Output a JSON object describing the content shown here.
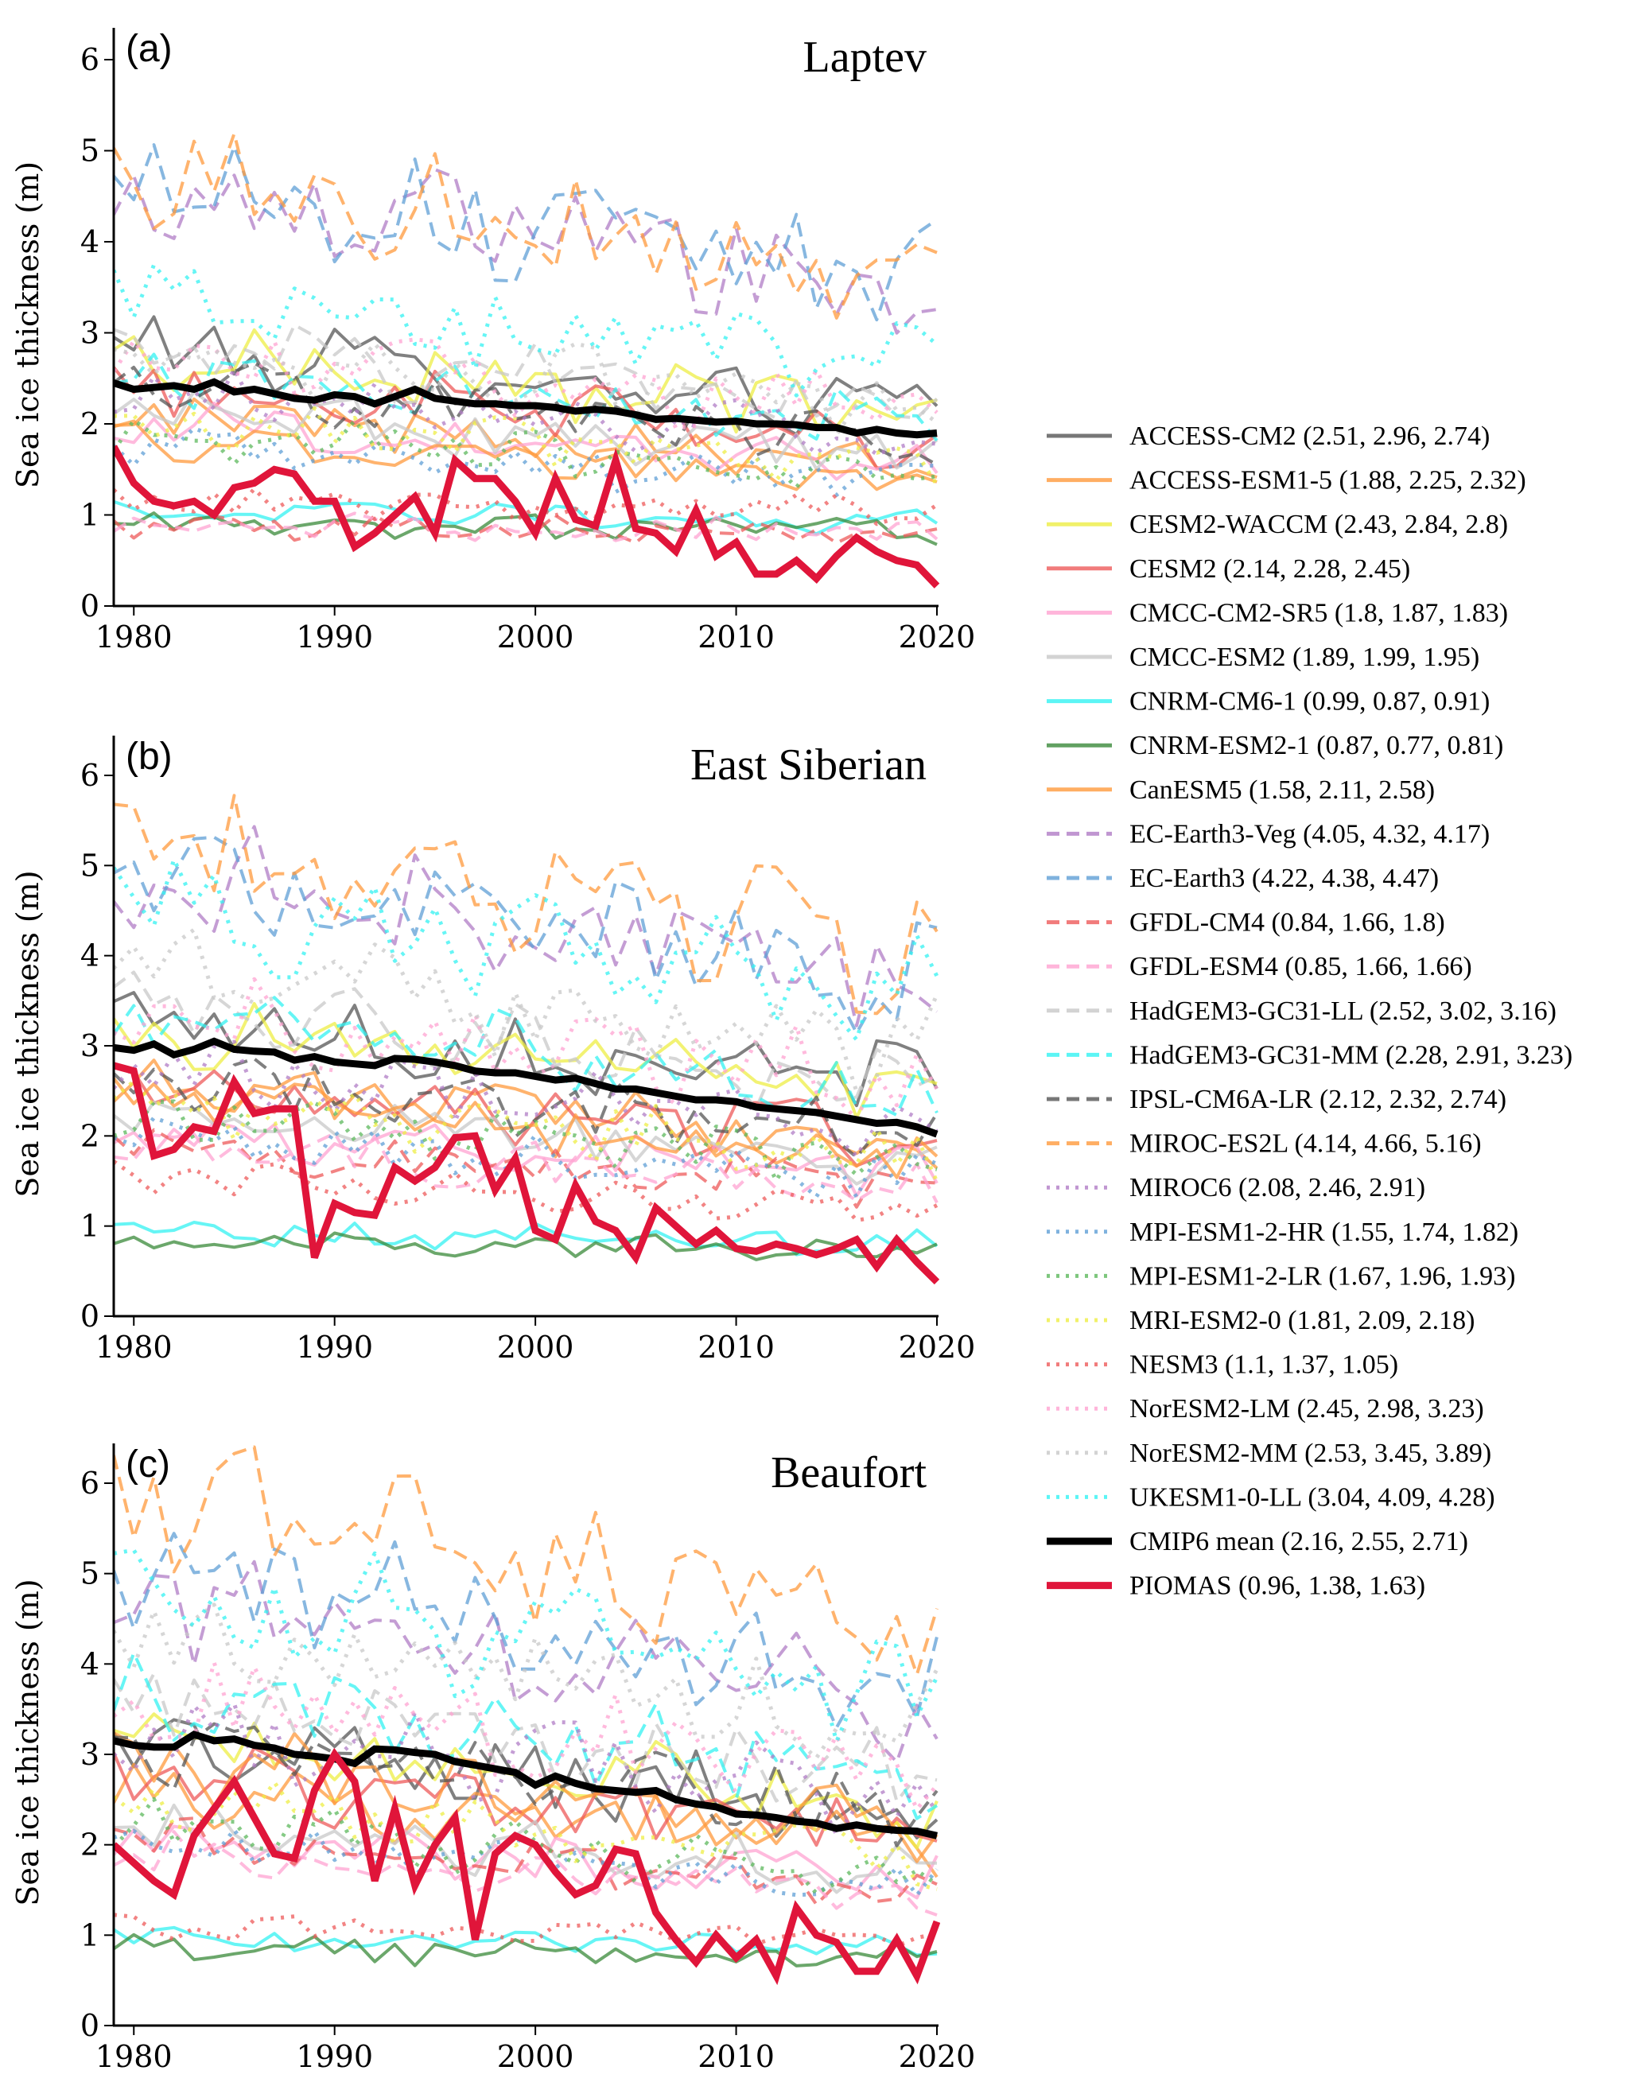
{
  "chart_data": {
    "type": "line",
    "figure_ylabel": "Sea ice thickness (m)",
    "x_ticks": [
      1980,
      1990,
      2000,
      2010,
      2020
    ],
    "y_ticks": [
      0,
      1,
      2,
      3,
      4,
      5,
      6
    ],
    "xlim": [
      1979,
      2020
    ],
    "ylim": [
      0,
      6.5
    ],
    "grid": false,
    "legend_placement": "right",
    "panels": [
      {
        "letter": "(a)",
        "title": "Laptev",
        "ylabel": "Sea ice thickness (m)",
        "cmip6_mean": [
          2.45,
          2.38,
          2.4,
          2.42,
          2.38,
          2.46,
          2.35,
          2.38,
          2.33,
          2.28,
          2.26,
          2.32,
          2.3,
          2.22,
          2.3,
          2.38,
          2.28,
          2.25,
          2.22,
          2.22,
          2.2,
          2.2,
          2.18,
          2.14,
          2.16,
          2.14,
          2.1,
          2.05,
          2.06,
          2.04,
          2.02,
          2.03,
          2.0,
          2.0,
          1.99,
          1.96,
          1.96,
          1.9,
          1.94,
          1.9,
          1.88,
          1.9
        ],
        "piomas": [
          1.75,
          1.35,
          1.15,
          1.1,
          1.15,
          1.0,
          1.3,
          1.35,
          1.5,
          1.45,
          1.15,
          1.15,
          0.65,
          0.8,
          1.0,
          1.2,
          0.8,
          1.6,
          1.4,
          1.4,
          1.15,
          0.8,
          1.4,
          0.95,
          0.88,
          1.6,
          0.85,
          0.8,
          0.6,
          1.05,
          0.55,
          0.7,
          0.35,
          0.35,
          0.5,
          0.3,
          0.55,
          0.75,
          0.6,
          0.5,
          0.45,
          0.22
        ]
      },
      {
        "letter": "(b)",
        "title": "East Siberian",
        "ylabel": "Sea ice thickness (m)",
        "cmip6_mean": [
          2.98,
          2.95,
          3.02,
          2.9,
          2.96,
          3.05,
          2.96,
          2.94,
          2.93,
          2.84,
          2.88,
          2.82,
          2.8,
          2.78,
          2.86,
          2.85,
          2.82,
          2.78,
          2.72,
          2.7,
          2.7,
          2.66,
          2.62,
          2.64,
          2.58,
          2.52,
          2.52,
          2.48,
          2.44,
          2.4,
          2.4,
          2.38,
          2.32,
          2.3,
          2.28,
          2.26,
          2.22,
          2.18,
          2.14,
          2.15,
          2.1,
          2.02
        ],
        "piomas": [
          2.78,
          2.72,
          1.78,
          1.85,
          2.1,
          2.05,
          2.6,
          2.25,
          2.3,
          2.3,
          0.65,
          1.25,
          1.15,
          1.12,
          1.65,
          1.5,
          1.65,
          1.98,
          2.0,
          1.4,
          1.75,
          0.95,
          0.85,
          1.45,
          1.05,
          0.95,
          0.65,
          1.2,
          1.0,
          0.8,
          0.95,
          0.75,
          0.72,
          0.8,
          0.75,
          0.68,
          0.75,
          0.85,
          0.55,
          0.85,
          0.6,
          0.38
        ]
      },
      {
        "letter": "(c)",
        "title": "Beaufort",
        "ylabel": "Sea ice thickness (m)",
        "cmip6_mean": [
          3.15,
          3.1,
          3.08,
          3.08,
          3.22,
          3.15,
          3.17,
          3.1,
          3.07,
          3.0,
          2.98,
          2.95,
          2.9,
          3.06,
          3.05,
          3.02,
          3.0,
          2.92,
          2.88,
          2.84,
          2.8,
          2.66,
          2.76,
          2.68,
          2.62,
          2.6,
          2.58,
          2.6,
          2.5,
          2.45,
          2.42,
          2.34,
          2.33,
          2.3,
          2.26,
          2.24,
          2.18,
          2.22,
          2.18,
          2.16,
          2.15,
          2.1
        ],
        "piomas": [
          2.0,
          1.8,
          1.6,
          1.45,
          2.1,
          2.4,
          2.7,
          2.3,
          1.9,
          1.85,
          2.6,
          3.0,
          2.7,
          1.6,
          2.4,
          1.55,
          2.0,
          2.3,
          0.95,
          1.9,
          2.1,
          2.0,
          1.7,
          1.45,
          1.55,
          1.95,
          1.9,
          1.25,
          0.95,
          0.7,
          1.0,
          0.75,
          0.95,
          0.55,
          1.3,
          1.0,
          0.92,
          0.6,
          0.6,
          0.95,
          0.55,
          1.15
        ]
      }
    ],
    "series": [
      {
        "name": "ACCESS-CM2",
        "label": "ACCESS-CM2 (2.51, 2.96, 2.74)",
        "color": "#555555",
        "style": "solid",
        "means": [
          2.51,
          2.96,
          2.74
        ]
      },
      {
        "name": "ACCESS-ESM1-5",
        "label": "ACCESS-ESM1-5 (1.88, 2.25, 2.32)",
        "color": "#ff9a3c",
        "style": "solid",
        "means": [
          1.88,
          2.25,
          2.32
        ]
      },
      {
        "name": "CESM2-WACCM",
        "label": "CESM2-WACCM (2.43, 2.84, 2.8)",
        "color": "#eeee44",
        "style": "solid",
        "means": [
          2.43,
          2.84,
          2.8
        ]
      },
      {
        "name": "CESM2",
        "label": "CESM2 (2.14, 2.28, 2.45)",
        "color": "#ee5a5a",
        "style": "solid",
        "means": [
          2.14,
          2.28,
          2.45
        ]
      },
      {
        "name": "CMCC-CM2-SR5",
        "label": "CMCC-CM2-SR5 (1.8, 1.87, 1.83)",
        "color": "#ffa3d1",
        "style": "solid",
        "means": [
          1.8,
          1.87,
          1.83
        ]
      },
      {
        "name": "CMCC-ESM2",
        "label": "CMCC-ESM2 (1.89, 1.99, 1.95)",
        "color": "#c8c8c8",
        "style": "solid",
        "means": [
          1.89,
          1.99,
          1.95
        ]
      },
      {
        "name": "CNRM-CM6-1",
        "label": "CNRM-CM6-1 (0.99, 0.87, 0.91)",
        "color": "#33f2f2",
        "style": "solid",
        "means": [
          0.99,
          0.87,
          0.91
        ]
      },
      {
        "name": "CNRM-ESM2-1",
        "label": "CNRM-ESM2-1 (0.87, 0.77, 0.81)",
        "color": "#3a8a3a",
        "style": "solid",
        "means": [
          0.87,
          0.77,
          0.81
        ]
      },
      {
        "name": "CanESM5",
        "label": "CanESM5 (1.58, 2.11, 2.58)",
        "color": "#ff9a3c",
        "style": "solid",
        "means": [
          1.58,
          2.11,
          2.58
        ]
      },
      {
        "name": "EC-Earth3-Veg",
        "label": "EC-Earth3-Veg (4.05, 4.32, 4.17)",
        "color": "#b07cc6",
        "style": "dashed",
        "means": [
          4.05,
          4.32,
          4.17
        ]
      },
      {
        "name": "EC-Earth3",
        "label": "EC-Earth3 (4.22, 4.38, 4.47)",
        "color": "#5f9fd6",
        "style": "dashed",
        "means": [
          4.22,
          4.38,
          4.47
        ]
      },
      {
        "name": "GFDL-CM4",
        "label": "GFDL-CM4 (0.84, 1.66, 1.8)",
        "color": "#ee5a5a",
        "style": "dashed",
        "means": [
          0.84,
          1.66,
          1.8
        ]
      },
      {
        "name": "GFDL-ESM4",
        "label": "GFDL-ESM4 (0.85, 1.66, 1.66)",
        "color": "#ffa3d1",
        "style": "dashed",
        "means": [
          0.85,
          1.66,
          1.66
        ]
      },
      {
        "name": "HadGEM3-GC31-LL",
        "label": "HadGEM3-GC31-LL (2.52, 3.02, 3.16)",
        "color": "#c8c8c8",
        "style": "dashed",
        "means": [
          2.52,
          3.02,
          3.16
        ]
      },
      {
        "name": "HadGEM3-GC31-MM",
        "label": "HadGEM3-GC31-MM (2.28, 2.91, 3.23)",
        "color": "#33f2f2",
        "style": "dashed",
        "means": [
          2.28,
          2.91,
          3.23
        ]
      },
      {
        "name": "IPSL-CM6A-LR",
        "label": "IPSL-CM6A-LR (2.12, 2.32, 2.74)",
        "color": "#555555",
        "style": "dashed",
        "means": [
          2.12,
          2.32,
          2.74
        ]
      },
      {
        "name": "MIROC-ES2L",
        "label": "MIROC-ES2L (4.14, 4.66, 5.16)",
        "color": "#ff9a3c",
        "style": "dashed",
        "means": [
          4.14,
          4.66,
          5.16
        ]
      },
      {
        "name": "MIROC6",
        "label": "MIROC6 (2.08, 2.46, 2.91)",
        "color": "#b07cc6",
        "style": "dotted",
        "means": [
          2.08,
          2.46,
          2.91
        ]
      },
      {
        "name": "MPI-ESM1-2-HR",
        "label": "MPI-ESM1-2-HR (1.55, 1.74, 1.82)",
        "color": "#5f9fd6",
        "style": "dotted",
        "means": [
          1.55,
          1.74,
          1.82
        ]
      },
      {
        "name": "MPI-ESM1-2-LR",
        "label": "MPI-ESM1-2-LR (1.67, 1.96, 1.93)",
        "color": "#5cb85c",
        "style": "dotted",
        "means": [
          1.67,
          1.96,
          1.93
        ]
      },
      {
        "name": "MRI-ESM2-0",
        "label": "MRI-ESM2-0 (1.81, 2.09, 2.18)",
        "color": "#eeee44",
        "style": "dotted",
        "means": [
          1.81,
          2.09,
          2.18
        ]
      },
      {
        "name": "NESM3",
        "label": "NESM3 (1.1, 1.37, 1.05)",
        "color": "#ee5a5a",
        "style": "dotted",
        "means": [
          1.1,
          1.37,
          1.05
        ]
      },
      {
        "name": "NorESM2-LM",
        "label": "NorESM2-LM (2.45, 2.98, 3.23)",
        "color": "#ffa3d1",
        "style": "dotted",
        "means": [
          2.45,
          2.98,
          3.23
        ]
      },
      {
        "name": "NorESM2-MM",
        "label": "NorESM2-MM (2.53, 3.45, 3.89)",
        "color": "#c8c8c8",
        "style": "dotted",
        "means": [
          2.53,
          3.45,
          3.89
        ]
      },
      {
        "name": "UKESM1-0-LL",
        "label": "UKESM1-0-LL (3.04, 4.09, 4.28)",
        "color": "#33f2f2",
        "style": "dotted",
        "means": [
          3.04,
          4.09,
          4.28
        ]
      },
      {
        "name": "CMIP6 mean",
        "label": "CMIP6 mean (2.16, 2.55, 2.71)",
        "color": "#000000",
        "style": "bold",
        "means": [
          2.16,
          2.55,
          2.71
        ]
      },
      {
        "name": "PIOMAS",
        "label": "PIOMAS (0.96, 1.38, 1.63)",
        "color": "#e0153a",
        "style": "bold",
        "means": [
          0.96,
          1.38,
          1.63
        ]
      }
    ]
  }
}
